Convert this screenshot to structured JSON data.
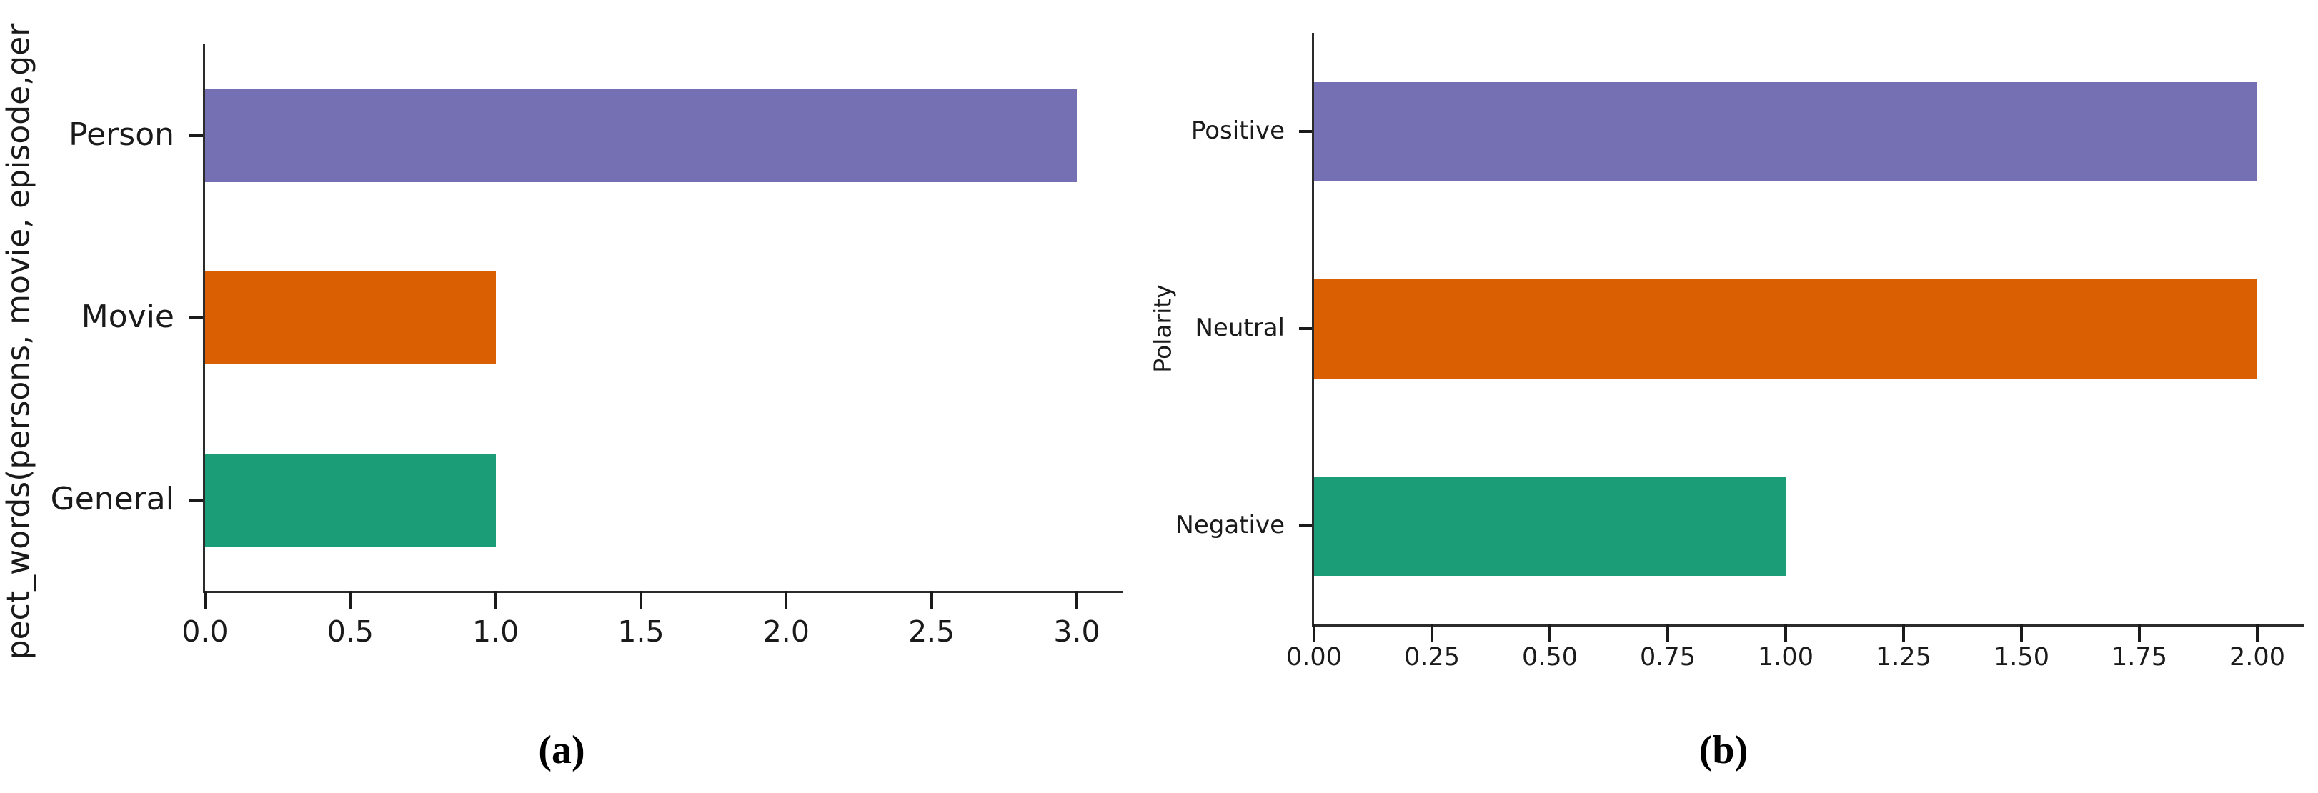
{
  "page": {
    "background_color": "#ffffff",
    "spine_color": "#2b2b2b",
    "text_color": "#1a1a1a"
  },
  "chart_data": [
    {
      "type": "bar",
      "orientation": "horizontal",
      "panel_label": "(a)",
      "title": "",
      "xlabel": "",
      "ylabel": "pect_words(persons, movie, episode,ger",
      "categories": [
        "Person",
        "Movie",
        "General"
      ],
      "values": [
        3.0,
        1.0,
        1.0
      ],
      "bar_colors": [
        "#7570b3",
        "#d95f02",
        "#1b9e77"
      ],
      "xlim": [
        0,
        3.15
      ],
      "xtick_values": [
        0.0,
        0.5,
        1.0,
        1.5,
        2.0,
        2.5,
        3.0
      ],
      "xtick_labels": [
        "0.0",
        "0.5",
        "1.0",
        "1.5",
        "2.0",
        "2.5",
        "3.0"
      ],
      "grid": false,
      "legend": null
    },
    {
      "type": "bar",
      "orientation": "horizontal",
      "panel_label": "(b)",
      "title": "",
      "xlabel": "",
      "ylabel": "Polarity",
      "categories": [
        "Positive",
        "Neutral",
        "Negative"
      ],
      "values": [
        2.0,
        2.0,
        1.0
      ],
      "bar_colors": [
        "#7570b3",
        "#d95f02",
        "#1b9e77"
      ],
      "xlim": [
        0,
        2.1
      ],
      "xtick_values": [
        0.0,
        0.25,
        0.5,
        0.75,
        1.0,
        1.25,
        1.5,
        1.75,
        2.0
      ],
      "xtick_labels": [
        "0.00",
        "0.25",
        "0.50",
        "0.75",
        "1.00",
        "1.25",
        "1.50",
        "1.75",
        "2.00"
      ],
      "grid": false,
      "legend": null
    }
  ]
}
